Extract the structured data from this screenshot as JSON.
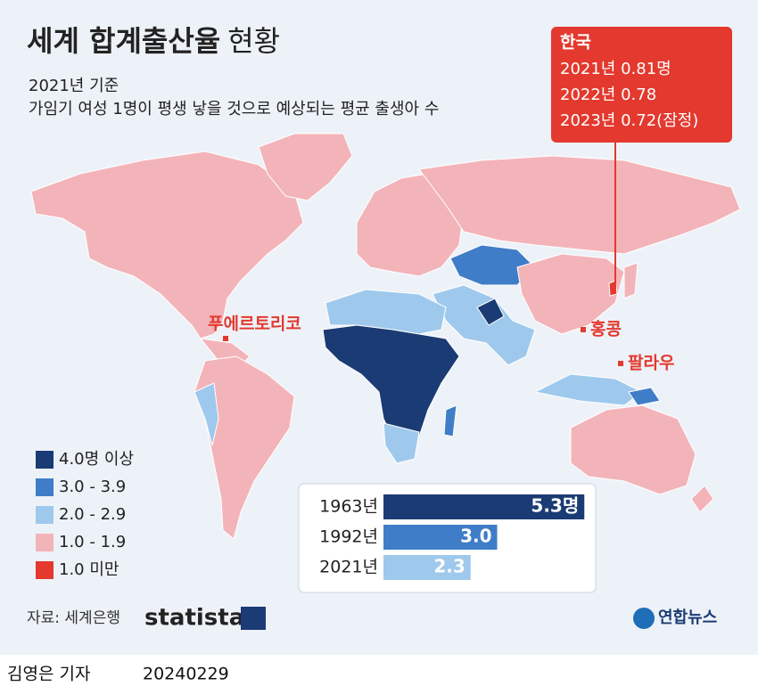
{
  "header": {
    "title": "세계 합계출산율",
    "title_suffix": "현황",
    "subtitle": "2021년 기준",
    "description": "가임기 여성 1명이 평생 낳을 것으로 예상되는 평균 출생아 수"
  },
  "callout": {
    "title": "한국",
    "lines": [
      "2021년 0.81명",
      "2022년 0.78",
      "2023년 0.72(잠정)"
    ]
  },
  "map_labels": [
    "푸에르토리코",
    "홍콩",
    "팔라우"
  ],
  "legend": [
    {
      "label": "4.0명 이상",
      "color": "#1b3b74"
    },
    {
      "label": "3.0 - 3.9",
      "color": "#3f7dc8"
    },
    {
      "label": "2.0 - 2.9",
      "color": "#9fc9ec"
    },
    {
      "label": "1.0 - 1.9",
      "color": "#f3b4b9"
    },
    {
      "label": "1.0 미만",
      "color": "#e3392e"
    }
  ],
  "inset_chart": {
    "type": "bar",
    "categories": [
      "1963년",
      "1992년",
      "2021년"
    ],
    "values": [
      5.3,
      3.0,
      2.3
    ],
    "value_labels": [
      "5.3명",
      "3.0",
      "2.3"
    ],
    "colors": [
      "#1b3b74",
      "#3f7dc8",
      "#9fc9ec"
    ]
  },
  "footer": {
    "source": "자료: 세계은행",
    "brand": "statista",
    "agency": "연합뉴스",
    "author": "김영은 기자",
    "date": "20240229"
  }
}
